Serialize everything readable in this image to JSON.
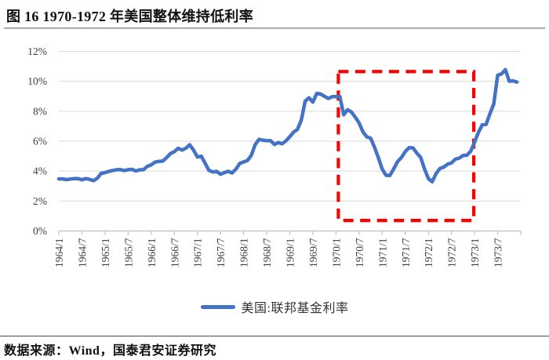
{
  "title": "图 16 1970-1972 年美国整体维持低利率",
  "legend": {
    "label": "美国:联邦基金利率"
  },
  "footer": {
    "source_text": "数据来源：Wind，国泰君安证券研究"
  },
  "colors": {
    "series_line": "#4472C4",
    "highlight_box": "#FF0000",
    "grid_line": "#D9D9D9",
    "axis_line": "#BFBFBF",
    "tick_text": "#3D3D3D"
  },
  "chart_data": {
    "type": "line",
    "title": "",
    "xlabel": "",
    "ylabel": "",
    "x_start": "1964/1",
    "x_frequency": "monthly",
    "x_tick_labels": [
      "1964/1",
      "1964/7",
      "1965/1",
      "1965/7",
      "1966/1",
      "1966/7",
      "1967/1",
      "1967/7",
      "1968/1",
      "1968/7",
      "1969/1",
      "1969/7",
      "1970/1",
      "1970/7",
      "1971/1",
      "1971/7",
      "1972/1",
      "1972/7",
      "1973/1",
      "1973/7"
    ],
    "y_ticks": [
      "0%",
      "2%",
      "4%",
      "6%",
      "8%",
      "10%",
      "12%"
    ],
    "ylim": [
      0,
      12
    ],
    "grid": "horizontal",
    "legend_position": "bottom-center",
    "series": [
      {
        "name": "美国:联邦基金利率",
        "unit": "%",
        "values": [
          3.48,
          3.48,
          3.43,
          3.47,
          3.5,
          3.5,
          3.42,
          3.5,
          3.45,
          3.36,
          3.52,
          3.85,
          3.9,
          3.98,
          4.04,
          4.09,
          4.1,
          4.04,
          4.09,
          4.12,
          4.01,
          4.08,
          4.1,
          4.32,
          4.42,
          4.6,
          4.65,
          4.67,
          4.9,
          5.17,
          5.3,
          5.53,
          5.4,
          5.53,
          5.76,
          5.4,
          4.94,
          5.0,
          4.53,
          4.05,
          3.94,
          3.98,
          3.79,
          3.9,
          3.99,
          3.88,
          4.13,
          4.51,
          4.61,
          4.71,
          5.05,
          5.76,
          6.12,
          6.07,
          6.03,
          6.03,
          5.78,
          5.91,
          5.82,
          6.02,
          6.3,
          6.61,
          6.79,
          7.41,
          8.67,
          8.9,
          8.61,
          9.19,
          9.15,
          9.0,
          8.85,
          8.97,
          8.98,
          8.98,
          7.76,
          8.1,
          7.95,
          7.61,
          7.21,
          6.62,
          6.29,
          6.2,
          5.6,
          4.9,
          4.14,
          3.72,
          3.71,
          4.15,
          4.63,
          4.91,
          5.31,
          5.57,
          5.55,
          5.2,
          4.91,
          4.14,
          3.5,
          3.29,
          3.83,
          4.17,
          4.27,
          4.46,
          4.55,
          4.8,
          4.87,
          5.04,
          5.06,
          5.33,
          5.94,
          6.58,
          7.09,
          7.12,
          7.84,
          8.49,
          10.4,
          10.5,
          10.78,
          10.01,
          10.03,
          9.95
        ]
      }
    ],
    "highlight_box": {
      "from": "1970/1",
      "to": "1973/1",
      "y_from": 0.7,
      "y_to": 10.65,
      "style": "red-dashed"
    }
  }
}
